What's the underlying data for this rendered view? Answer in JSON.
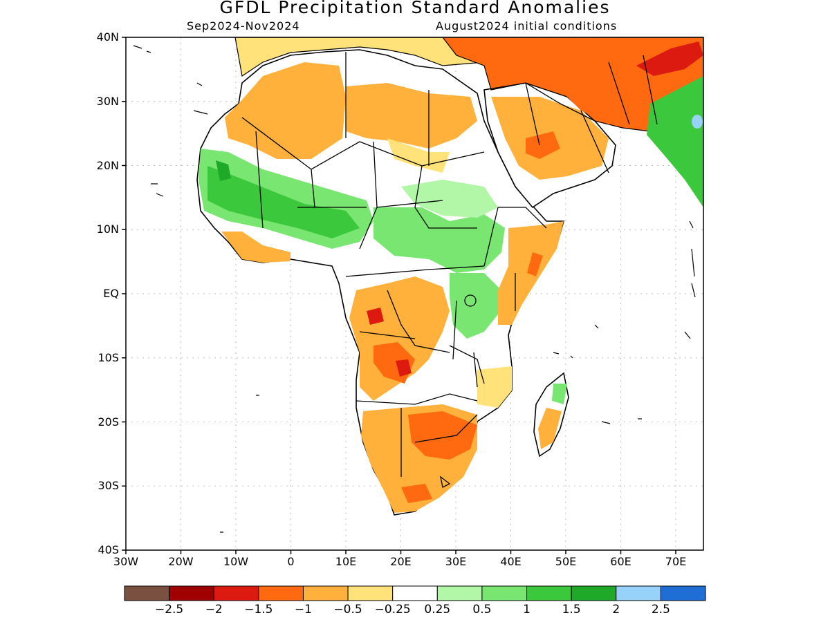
{
  "title": "GFDL Precipitation Standard Anomalies",
  "subtitle_left": "Sep2024-Nov2024",
  "subtitle_right": "August2024 initial conditions",
  "y_ticks": [
    "40N",
    "30N",
    "20N",
    "10N",
    "EQ",
    "10S",
    "20S",
    "30S",
    "40S"
  ],
  "x_ticks": [
    "30W",
    "20W",
    "10W",
    "0",
    "10E",
    "20E",
    "30E",
    "40E",
    "50E",
    "60E",
    "70E"
  ],
  "colorbar": {
    "colors": [
      "#7a5040",
      "#a00000",
      "#dd1a10",
      "#ff6a10",
      "#ffb13c",
      "#ffe27a",
      "#ffffff",
      "#b2f6a8",
      "#78e670",
      "#3cc83c",
      "#1eaa28",
      "#96d2fa",
      "#1e6ed6"
    ],
    "labels": [
      "-2.5",
      "-2",
      "-1.5",
      "-1",
      "-0.5",
      "-0.25",
      "0.25",
      "0.5",
      "1",
      "1.5",
      "2",
      "2.5"
    ]
  }
}
